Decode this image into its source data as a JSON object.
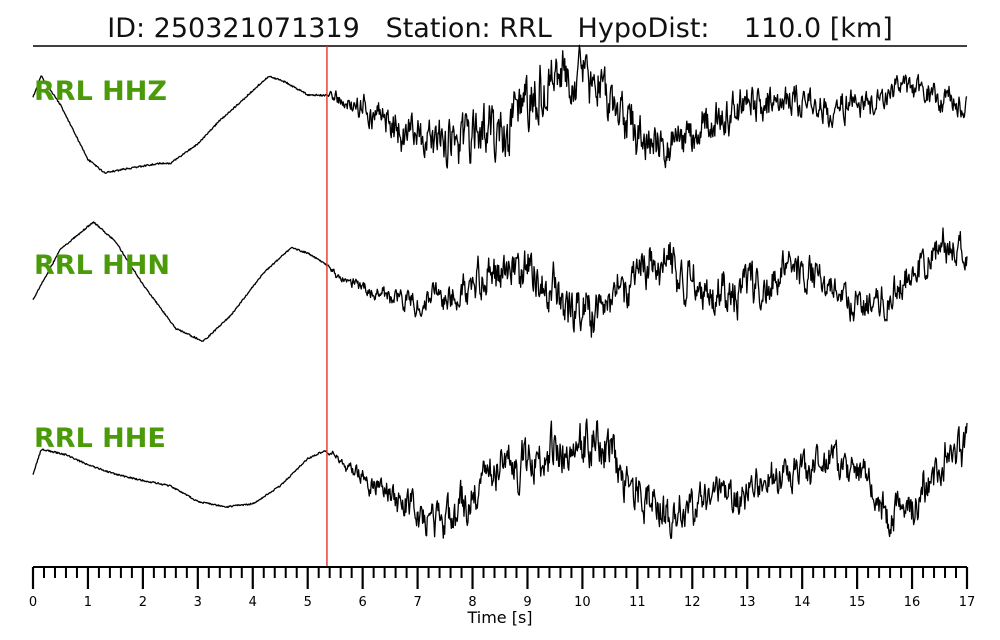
{
  "chart_data": {
    "type": "line",
    "title": "ID: 250321071319   Station: RRL   HypoDist:    110.0 [km]",
    "xlabel": "Time [s]",
    "xlim": [
      0,
      17
    ],
    "x_ticks": [
      "0",
      "1",
      "2",
      "3",
      "4",
      "5",
      "6",
      "7",
      "8",
      "9",
      "10",
      "11",
      "12",
      "13",
      "14",
      "15",
      "16",
      "17"
    ],
    "minor_tick_step": 0.2,
    "pick_time": 5.35,
    "colors": {
      "trace": "#000000",
      "label": "#4a9a0a",
      "pick": "#e8312a"
    },
    "series": [
      {
        "name": "RRL HHZ",
        "ylim": [
          -1,
          1
        ],
        "low_freq": [
          [
            0,
            0.55
          ],
          [
            0.15,
            0.82
          ],
          [
            0.5,
            0.45
          ],
          [
            1.0,
            -0.25
          ],
          [
            1.3,
            -0.42
          ],
          [
            1.7,
            -0.37
          ],
          [
            2.3,
            -0.3
          ],
          [
            2.5,
            -0.3
          ],
          [
            3.0,
            -0.05
          ],
          [
            3.4,
            0.25
          ],
          [
            3.8,
            0.5
          ],
          [
            4.1,
            0.7
          ],
          [
            4.3,
            0.82
          ],
          [
            4.6,
            0.74
          ],
          [
            5.0,
            0.58
          ],
          [
            5.4,
            0.57
          ],
          [
            6.0,
            0.4
          ],
          [
            6.8,
            0.05
          ],
          [
            7.5,
            -0.05
          ],
          [
            8.5,
            0.1
          ],
          [
            9.0,
            0.4
          ],
          [
            9.5,
            0.75
          ],
          [
            9.8,
            0.8
          ],
          [
            10.2,
            0.75
          ],
          [
            10.6,
            0.35
          ],
          [
            11.0,
            0.05
          ],
          [
            11.5,
            -0.15
          ],
          [
            12.0,
            0.08
          ],
          [
            12.5,
            0.3
          ],
          [
            13.0,
            0.45
          ],
          [
            13.5,
            0.55
          ],
          [
            14.0,
            0.48
          ],
          [
            14.5,
            0.38
          ],
          [
            15.0,
            0.48
          ],
          [
            15.5,
            0.55
          ],
          [
            16.0,
            0.62
          ],
          [
            16.5,
            0.58
          ],
          [
            17.0,
            0.4
          ]
        ],
        "noise": [
          [
            0,
            0
          ],
          [
            5.3,
            0
          ],
          [
            5.5,
            0.08
          ],
          [
            6.5,
            0.22
          ],
          [
            7.5,
            0.32
          ],
          [
            8.5,
            0.36
          ],
          [
            9.5,
            0.36
          ],
          [
            10.5,
            0.3
          ],
          [
            11.5,
            0.24
          ],
          [
            12.5,
            0.22
          ],
          [
            13.5,
            0.2
          ],
          [
            14.5,
            0.18
          ],
          [
            15.5,
            0.16
          ],
          [
            16.5,
            0.16
          ],
          [
            17,
            0.15
          ]
        ],
        "seed": 11
      },
      {
        "name": "RRL HHN",
        "ylim": [
          -1,
          1
        ],
        "low_freq": [
          [
            0,
            -0.05
          ],
          [
            0.5,
            0.6
          ],
          [
            1.1,
            0.95
          ],
          [
            1.5,
            0.7
          ],
          [
            2.0,
            0.15
          ],
          [
            2.6,
            -0.42
          ],
          [
            3.1,
            -0.58
          ],
          [
            3.6,
            -0.25
          ],
          [
            4.2,
            0.3
          ],
          [
            4.7,
            0.62
          ],
          [
            5.0,
            0.55
          ],
          [
            5.3,
            0.42
          ],
          [
            5.6,
            0.25
          ],
          [
            6.3,
            0.02
          ],
          [
            7.0,
            -0.08
          ],
          [
            7.5,
            -0.02
          ],
          [
            8.0,
            0.12
          ],
          [
            8.5,
            0.28
          ],
          [
            9.0,
            0.32
          ],
          [
            9.5,
            0.05
          ],
          [
            10.0,
            -0.25
          ],
          [
            10.5,
            0.08
          ],
          [
            11.0,
            0.42
          ],
          [
            11.5,
            0.45
          ],
          [
            12.0,
            0.18
          ],
          [
            12.5,
            -0.02
          ],
          [
            13.0,
            0.1
          ],
          [
            13.5,
            0.22
          ],
          [
            14.0,
            0.3
          ],
          [
            14.5,
            0.1
          ],
          [
            15.0,
            -0.1
          ],
          [
            15.5,
            -0.05
          ],
          [
            16.0,
            0.28
          ],
          [
            16.5,
            0.6
          ],
          [
            17.0,
            0.55
          ]
        ],
        "noise": [
          [
            0,
            0
          ],
          [
            5.3,
            0
          ],
          [
            5.5,
            0.05
          ],
          [
            6.5,
            0.1
          ],
          [
            7.5,
            0.18
          ],
          [
            8.5,
            0.25
          ],
          [
            9.5,
            0.3
          ],
          [
            10.5,
            0.3
          ],
          [
            11.5,
            0.28
          ],
          [
            12.5,
            0.26
          ],
          [
            13.5,
            0.24
          ],
          [
            14.5,
            0.2
          ],
          [
            15.5,
            0.2
          ],
          [
            16.5,
            0.24
          ],
          [
            17,
            0.22
          ]
        ],
        "seed": 23
      },
      {
        "name": "RRL HHE",
        "ylim": [
          -1,
          1
        ],
        "low_freq": [
          [
            0,
            0.1
          ],
          [
            0.15,
            0.42
          ],
          [
            0.6,
            0.35
          ],
          [
            1.0,
            0.22
          ],
          [
            1.5,
            0.1
          ],
          [
            2.0,
            0.02
          ],
          [
            2.5,
            -0.05
          ],
          [
            3.0,
            -0.25
          ],
          [
            3.5,
            -0.32
          ],
          [
            4.0,
            -0.28
          ],
          [
            4.5,
            -0.05
          ],
          [
            5.0,
            0.3
          ],
          [
            5.3,
            0.4
          ],
          [
            5.6,
            0.3
          ],
          [
            6.2,
            -0.05
          ],
          [
            6.8,
            -0.35
          ],
          [
            7.3,
            -0.5
          ],
          [
            7.7,
            -0.45
          ],
          [
            8.2,
            0.05
          ],
          [
            8.8,
            0.25
          ],
          [
            9.3,
            0.3
          ],
          [
            9.8,
            0.45
          ],
          [
            10.3,
            0.55
          ],
          [
            10.8,
            0.05
          ],
          [
            11.3,
            -0.28
          ],
          [
            11.8,
            -0.35
          ],
          [
            12.3,
            -0.18
          ],
          [
            12.8,
            -0.12
          ],
          [
            13.3,
            0.0
          ],
          [
            13.8,
            0.1
          ],
          [
            14.3,
            0.25
          ],
          [
            14.8,
            0.3
          ],
          [
            15.2,
            -0.05
          ],
          [
            15.6,
            -0.5
          ],
          [
            16.0,
            -0.25
          ],
          [
            16.5,
            0.25
          ],
          [
            17.0,
            0.45
          ]
        ],
        "noise": [
          [
            0,
            0
          ],
          [
            5.3,
            0
          ],
          [
            5.5,
            0.05
          ],
          [
            6.5,
            0.18
          ],
          [
            7.5,
            0.26
          ],
          [
            8.5,
            0.26
          ],
          [
            9.5,
            0.28
          ],
          [
            10.5,
            0.3
          ],
          [
            11.5,
            0.26
          ],
          [
            12.5,
            0.24
          ],
          [
            13.5,
            0.22
          ],
          [
            14.5,
            0.2
          ],
          [
            15.5,
            0.24
          ],
          [
            16.5,
            0.26
          ],
          [
            17,
            0.26
          ]
        ],
        "seed": 37
      }
    ]
  }
}
